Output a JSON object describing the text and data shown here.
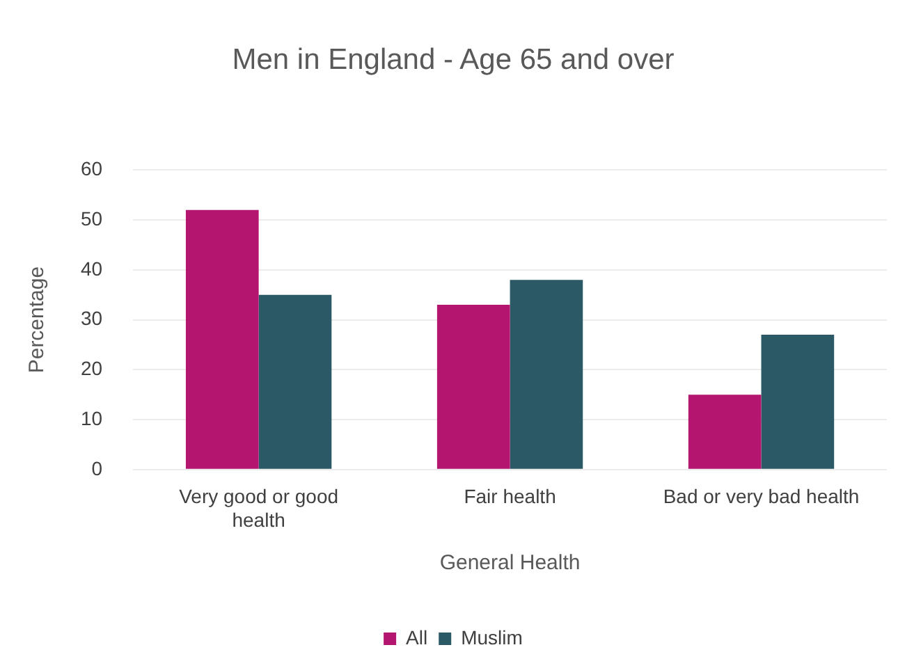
{
  "chart_data": {
    "type": "bar",
    "title": "Men in England - Age 65 and over",
    "xlabel": "General Health",
    "ylabel": "Percentage",
    "categories": [
      "Very good or good health",
      "Fair health",
      "Bad or very bad health"
    ],
    "series": [
      {
        "name": "All",
        "color": "#b3156f",
        "values": [
          52,
          33,
          15
        ]
      },
      {
        "name": "Muslim",
        "color": "#2b5a66",
        "values": [
          35,
          38,
          27
        ]
      }
    ],
    "ylim": [
      0,
      60
    ],
    "yticks": [
      0,
      10,
      20,
      30,
      40,
      50,
      60
    ],
    "grid": "y",
    "legend": "bottom"
  }
}
